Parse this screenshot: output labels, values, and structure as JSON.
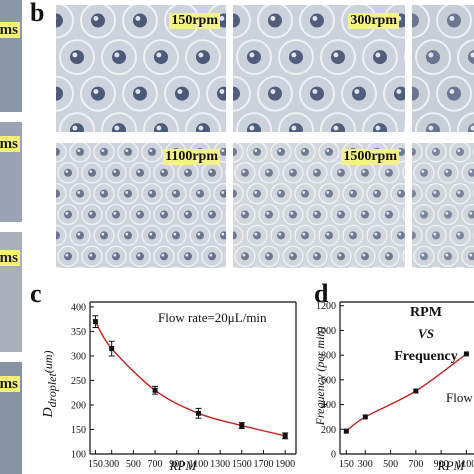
{
  "panel_letters": {
    "b": "b",
    "c": "c",
    "d": "d"
  },
  "strip": {
    "labels": [
      "ms",
      "ms",
      "ms",
      "ms"
    ],
    "colors": [
      "#8a97a8",
      "#9aa4b4",
      "#a9b0bb",
      "#8593a3"
    ]
  },
  "micrographs": [
    {
      "label": "150rpm",
      "bg": "#cdd3dc",
      "drop_color": "#4c5a7a"
    },
    {
      "label": "300rpm",
      "bg": "#ccd2db",
      "drop_color": "#505d7c"
    },
    {
      "label": "",
      "bg": "#c8ced6",
      "drop_color": "#6a7590"
    },
    {
      "label": "1100rpm",
      "bg": "#cfd4dc",
      "drop_color": "#68738d"
    },
    {
      "label": "1500rpm",
      "bg": "#d2d6dd",
      "drop_color": "#6f7a93"
    },
    {
      "label": "",
      "bg": "#d0d4db",
      "drop_color": "#7a849b"
    }
  ],
  "chart_data": [
    {
      "type": "line",
      "panel": "c",
      "annotation": "Flow rate=20μL/min",
      "xlabel": "RPM",
      "ylabel": "D droplet (um)",
      "ylabel_main": "D",
      "ylabel_sub": "droplet",
      "ylabel_unit": "(um)",
      "x_ticks": [
        "150",
        "300",
        "500",
        "700",
        "900",
        "1100",
        "1300",
        "1500",
        "1700",
        "1900"
      ],
      "y_ticks": [
        "100",
        "150",
        "200",
        "250",
        "300",
        "350",
        "400"
      ],
      "xlim": [
        100,
        2000
      ],
      "ylim": [
        100,
        410
      ],
      "grid": false,
      "line_color": "#cc1f1f",
      "series": [
        {
          "x": [
            150,
            300,
            700,
            1100,
            1500,
            1900
          ],
          "y": [
            370,
            315,
            230,
            183,
            158,
            137
          ],
          "err": [
            12,
            15,
            8,
            10,
            6,
            6
          ]
        }
      ]
    },
    {
      "type": "line",
      "panel": "d",
      "annotation_lines": [
        "RPM",
        "VS",
        "Frequency",
        "Flow"
      ],
      "xlabel": "RPM",
      "ylabel": "Frequency (per min)",
      "x_ticks": [
        "150",
        "300",
        "500",
        "700",
        "900",
        "1100"
      ],
      "y_ticks": [
        "0",
        "200",
        "400",
        "600",
        "800",
        "1000",
        "1200"
      ],
      "xlim": [
        100,
        1160
      ],
      "ylim": [
        0,
        1230
      ],
      "grid": false,
      "line_color": "#cc1f1f",
      "series": [
        {
          "x": [
            150,
            300,
            700,
            1100
          ],
          "y": [
            185,
            300,
            510,
            810
          ]
        }
      ]
    }
  ]
}
